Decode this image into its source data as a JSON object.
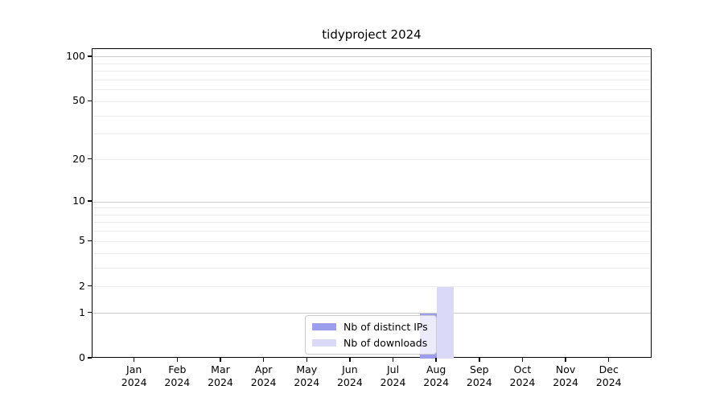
{
  "chart_data": {
    "type": "bar",
    "title": "tidyproject 2024",
    "x_categories": [
      "Jan",
      "Feb",
      "Mar",
      "Apr",
      "May",
      "Jun",
      "Jul",
      "Aug",
      "Sep",
      "Oct",
      "Nov",
      "Dec"
    ],
    "x_year": "2024",
    "series": [
      {
        "name": "Nb of distinct IPs",
        "color": "#9d9dee",
        "values": [
          0,
          0,
          0,
          0,
          0,
          0,
          0,
          1,
          0,
          0,
          0,
          0
        ]
      },
      {
        "name": "Nb of downloads",
        "color": "#dadaf8",
        "values": [
          0,
          0,
          0,
          0,
          0,
          0,
          0,
          2,
          0,
          0,
          0,
          0
        ]
      }
    ],
    "yscale": "log1p",
    "ylim": [
      0,
      113
    ],
    "y_ticks": [
      {
        "label": "0",
        "value": 0
      },
      {
        "label": "1",
        "value": 1
      },
      {
        "label": "2",
        "value": 2
      },
      {
        "label": "5",
        "value": 5
      },
      {
        "label": "10",
        "value": 10
      },
      {
        "label": "20",
        "value": 20
      },
      {
        "label": "50",
        "value": 50
      },
      {
        "label": "100",
        "value": 100
      }
    ],
    "y_major_gridlines": [
      1,
      10,
      100
    ],
    "y_minor_gridlines": [
      2,
      3,
      4,
      5,
      6,
      7,
      8,
      9,
      20,
      30,
      40,
      50,
      60,
      70,
      80,
      90
    ],
    "grid": true,
    "legend_location": "lower center"
  }
}
